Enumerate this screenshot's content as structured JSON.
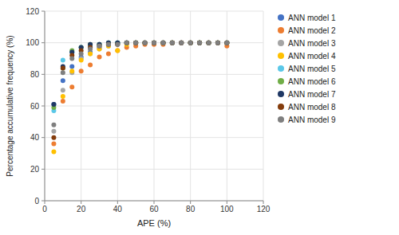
{
  "chart_data": {
    "type": "scatter",
    "xlabel": "APE (%)",
    "ylabel": "Percentage accumulative frequency (%)",
    "xlim": [
      0,
      120
    ],
    "ylim": [
      0,
      120
    ],
    "xticks": [
      0,
      20,
      40,
      60,
      80,
      100,
      120
    ],
    "yticks": [
      0,
      20,
      40,
      60,
      80,
      100,
      120
    ],
    "grid": true,
    "legend": "right",
    "series": [
      {
        "name": "ANN model 1",
        "color": "#4472C4",
        "x": [
          5,
          10,
          15,
          20,
          25,
          30,
          35,
          40,
          45,
          50,
          55,
          60,
          65,
          70,
          75,
          80,
          85,
          90,
          95,
          100
        ],
        "values": [
          61,
          76,
          85,
          91,
          94,
          97,
          99,
          100,
          100,
          100,
          100,
          100,
          100,
          100,
          100,
          100,
          100,
          100,
          100,
          100
        ]
      },
      {
        "name": "ANN model 2",
        "color": "#ED7D31",
        "x": [
          5,
          10,
          15,
          20,
          25,
          30,
          35,
          40,
          45,
          50,
          55,
          60,
          65,
          70,
          75,
          80,
          85,
          90,
          95,
          100
        ],
        "values": [
          36,
          63,
          72,
          82,
          86,
          91,
          93,
          95,
          97,
          98,
          99,
          99,
          99,
          100,
          100,
          100,
          100,
          100,
          100,
          98
        ]
      },
      {
        "name": "ANN model 3",
        "color": "#A5A5A5",
        "x": [
          5,
          10,
          15,
          20,
          25,
          30,
          35,
          40,
          45,
          50,
          55,
          60,
          65,
          70,
          75,
          80,
          85,
          90,
          95,
          100
        ],
        "values": [
          44,
          70,
          81,
          90,
          93,
          96,
          98,
          99,
          100,
          100,
          100,
          100,
          100,
          100,
          100,
          100,
          100,
          100,
          100,
          100
        ]
      },
      {
        "name": "ANN model 4",
        "color": "#FFC000",
        "x": [
          5,
          10,
          15,
          20,
          25,
          30,
          35,
          40,
          45,
          50,
          55,
          60,
          65,
          70,
          75,
          80,
          85,
          90,
          95,
          100
        ],
        "values": [
          31,
          66,
          82,
          89,
          93,
          96,
          98,
          95,
          99,
          100,
          100,
          100,
          100,
          100,
          100,
          100,
          100,
          100,
          100,
          100
        ]
      },
      {
        "name": "ANN model 5",
        "color": "#5BC8E8",
        "x": [
          5,
          10,
          15,
          20,
          25,
          30,
          35,
          40,
          45,
          50,
          55,
          60,
          65,
          70,
          75,
          80,
          85,
          90,
          95,
          100
        ],
        "values": [
          57,
          89,
          94,
          97,
          98,
          99,
          100,
          100,
          100,
          100,
          100,
          100,
          100,
          100,
          100,
          100,
          100,
          100,
          100,
          100
        ]
      },
      {
        "name": "ANN model 6",
        "color": "#70AD47",
        "x": [
          5,
          10,
          15,
          20,
          25,
          30,
          35,
          40,
          45,
          50,
          55,
          60,
          65,
          70,
          85,
          80,
          85,
          90,
          95,
          100
        ],
        "values": [
          59,
          84,
          95,
          97,
          99,
          99,
          100,
          100,
          100,
          100,
          100,
          100,
          100,
          100,
          100,
          100,
          100,
          100,
          100,
          100
        ]
      },
      {
        "name": "ANN model 7",
        "color": "#1F3864",
        "x": [
          5,
          10,
          15,
          20,
          25,
          30,
          35,
          40,
          45,
          50,
          55,
          60,
          65,
          70,
          75,
          80,
          85,
          90,
          95,
          100
        ],
        "values": [
          61,
          85,
          94,
          97,
          99,
          99,
          100,
          100,
          100,
          100,
          100,
          100,
          100,
          100,
          100,
          100,
          100,
          100,
          100,
          100
        ]
      },
      {
        "name": "ANN model 8",
        "color": "#843C0C",
        "x": [
          5,
          10,
          15,
          20,
          25,
          30,
          35,
          40,
          45,
          50,
          55,
          60,
          65,
          70,
          75,
          80,
          85,
          90,
          95,
          100
        ],
        "values": [
          40,
          84,
          92,
          95,
          97,
          98,
          99,
          99,
          100,
          100,
          100,
          100,
          100,
          100,
          100,
          100,
          100,
          100,
          100,
          100
        ]
      },
      {
        "name": "ANN model 9",
        "color": "#7F7F7F",
        "x": [
          5,
          10,
          15,
          20,
          25,
          30,
          35,
          40,
          45,
          50,
          55,
          60,
          65,
          70,
          75,
          80,
          85,
          90,
          95,
          100
        ],
        "values": [
          48,
          81,
          90,
          93,
          96,
          98,
          99,
          99,
          100,
          100,
          100,
          100,
          100,
          100,
          100,
          100,
          100,
          100,
          100,
          100
        ]
      }
    ]
  }
}
